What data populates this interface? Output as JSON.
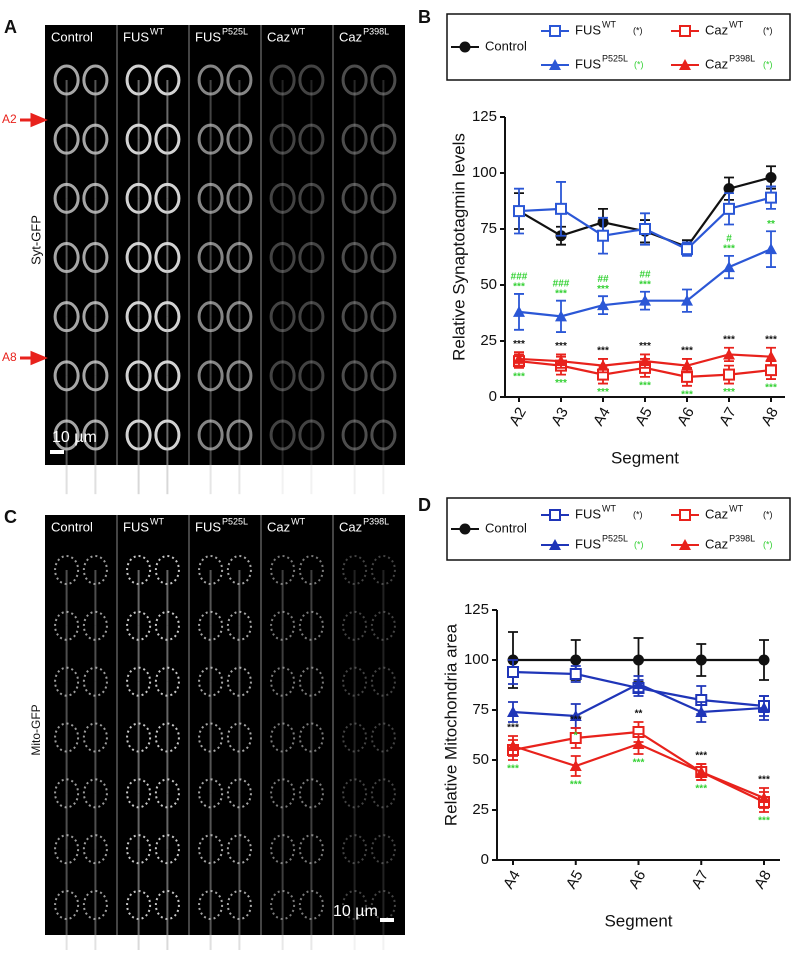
{
  "image_columns": [
    {
      "name": "Control"
    },
    {
      "name": "FUS",
      "sup": "WT"
    },
    {
      "name": "FUS",
      "sup": "P525L"
    },
    {
      "name": "Caz",
      "sup": "WT"
    },
    {
      "name": "Caz",
      "sup": "P398L"
    }
  ],
  "panel_a": {
    "letter": "A",
    "stain": "Syt-GFP",
    "markers": [
      "A2",
      "A8"
    ],
    "scale": "10 µm"
  },
  "panel_c": {
    "letter": "C",
    "stain": "Mito-GFP",
    "scale": "10 µm"
  },
  "chart_data": [
    {
      "type": "line",
      "letter": "B",
      "ylabel": "Relative Synaptotagmin levels",
      "xlabel": "Segment",
      "categories": [
        "A2",
        "A3",
        "A4",
        "A5",
        "A6",
        "A7",
        "A8"
      ],
      "ylim": [
        0,
        125
      ],
      "yticks": [
        0,
        25,
        50,
        75,
        100,
        125
      ],
      "series": [
        {
          "name": "Control",
          "color": "#111111",
          "marker": "circle",
          "values": [
            83,
            72,
            78,
            74,
            67,
            93,
            98
          ],
          "errors": [
            8,
            4,
            6,
            5,
            3,
            5,
            5
          ]
        },
        {
          "name": "FUS",
          "sup": "WT",
          "note": "(*)",
          "note_color": "#111111",
          "color": "#2b57d6",
          "marker": "open-square",
          "values": [
            83,
            84,
            72,
            75,
            66,
            84,
            89
          ],
          "errors": [
            10,
            12,
            8,
            7,
            3,
            7,
            5
          ]
        },
        {
          "name": "FUS",
          "sup": "P525L",
          "note": "(*)",
          "note_color": "#33d133",
          "color": "#2b57d6",
          "marker": "triangle",
          "values": [
            38,
            36,
            41,
            43,
            43,
            58,
            66
          ],
          "errors": [
            8,
            7,
            4,
            4,
            5,
            5,
            8
          ]
        },
        {
          "name": "Caz",
          "sup": "WT",
          "note": "(*)",
          "note_color": "#111111",
          "color": "#e8221c",
          "marker": "open-square",
          "values": [
            16,
            14,
            10,
            13,
            9,
            10,
            12
          ],
          "errors": [
            3,
            4,
            4,
            4,
            4,
            4,
            4
          ]
        },
        {
          "name": "Caz",
          "sup": "P398L",
          "note": "(*)",
          "note_color": "#33d133",
          "color": "#e8221c",
          "marker": "triangle",
          "values": [
            17,
            16,
            14,
            16,
            14,
            19,
            18
          ],
          "errors": [
            3,
            3,
            3,
            3,
            3,
            3,
            4
          ]
        }
      ],
      "sig_caz_above": [
        "***",
        "***",
        "***",
        "***",
        "***",
        "***",
        "***"
      ],
      "sig_caz_below": [
        "***",
        "***",
        "***",
        "***",
        "***",
        "***",
        "***"
      ],
      "sig_p525l_hash": [
        "###",
        "###",
        "##",
        "##",
        null,
        "#",
        null
      ],
      "sig_p525l_upper": [
        "***",
        "***",
        "***",
        "***",
        null,
        "***",
        "**"
      ]
    },
    {
      "type": "line",
      "letter": "D",
      "ylabel": "Relative Mitochondria area",
      "xlabel": "Segment",
      "categories": [
        "A4",
        "A5",
        "A6",
        "A7",
        "A8"
      ],
      "ylim": [
        0,
        125
      ],
      "yticks": [
        0,
        25,
        50,
        75,
        100,
        125
      ],
      "series": [
        {
          "name": "Control",
          "color": "#111111",
          "marker": "circle",
          "values": [
            100,
            100,
            100,
            100,
            100
          ],
          "errors": [
            14,
            10,
            11,
            8,
            10
          ]
        },
        {
          "name": "FUS",
          "sup": "WT",
          "note": "(*)",
          "note_color": "#111111",
          "color": "#1f35b8",
          "marker": "open-square",
          "values": [
            94,
            93,
            86,
            80,
            77
          ],
          "errors": [
            6,
            4,
            4,
            7,
            5
          ]
        },
        {
          "name": "FUS",
          "sup": "P525L",
          "note": "(*)",
          "note_color": "#33d133",
          "color": "#1f35b8",
          "marker": "triangle",
          "values": [
            74,
            72,
            88,
            74,
            76
          ],
          "errors": [
            5,
            6,
            4,
            5,
            6
          ]
        },
        {
          "name": "Caz",
          "sup": "WT",
          "note": "(*)",
          "note_color": "#111111",
          "color": "#e8221c",
          "marker": "open-square",
          "values": [
            55,
            61,
            64,
            44,
            29
          ],
          "errors": [
            5,
            5,
            5,
            4,
            5
          ]
        },
        {
          "name": "Caz",
          "sup": "P398L",
          "note": "(*)",
          "note_color": "#33d133",
          "color": "#e8221c",
          "marker": "triangle",
          "values": [
            57,
            47,
            58,
            44,
            31
          ],
          "errors": [
            5,
            5,
            5,
            4,
            5
          ]
        }
      ],
      "sig_caz_above": [
        "***",
        "***",
        "**",
        "***",
        "***"
      ],
      "sig_caz_below": [
        "***",
        "***",
        "***",
        "***",
        "***"
      ],
      "sig_p525l_lower": [
        null,
        "*",
        null,
        null,
        null
      ]
    }
  ]
}
